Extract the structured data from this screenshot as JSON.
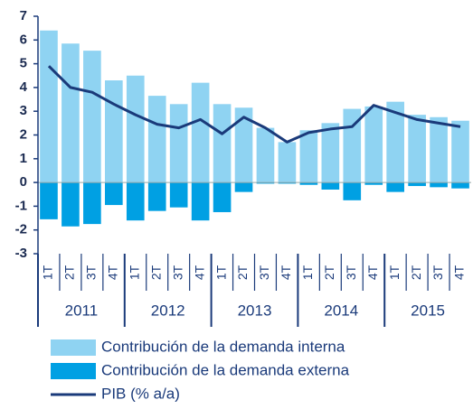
{
  "chart_data": {
    "type": "bar",
    "categories": [
      "1T",
      "2T",
      "3T",
      "4T",
      "1T",
      "2T",
      "3T",
      "4T",
      "1T",
      "2T",
      "3T",
      "4T",
      "1T",
      "2T",
      "3T",
      "4T",
      "1T",
      "2T",
      "3T",
      "4T"
    ],
    "years": [
      "2011",
      "2012",
      "2013",
      "2014",
      "2015"
    ],
    "series": [
      {
        "name": "Contribución de la demanda interna",
        "type": "bar",
        "color": "#8fd3f2",
        "values": [
          6.4,
          5.85,
          5.55,
          4.3,
          4.5,
          3.65,
          3.3,
          4.2,
          3.3,
          3.15,
          2.3,
          1.7,
          2.2,
          2.5,
          3.1,
          3.2,
          3.4,
          2.85,
          2.75,
          2.6
        ]
      },
      {
        "name": "Contribución de la demanda externa",
        "type": "bar",
        "color": "#00a0e3",
        "values": [
          -1.55,
          -1.85,
          -1.75,
          -0.95,
          -1.6,
          -1.2,
          -1.05,
          -1.6,
          -1.25,
          -0.4,
          -0.05,
          -0.05,
          -0.1,
          -0.3,
          -0.75,
          -0.1,
          -0.4,
          -0.15,
          -0.2,
          -0.25
        ]
      },
      {
        "name": "PIB (% a/a)",
        "type": "line",
        "color": "#1a3a7a",
        "values": [
          4.9,
          4.0,
          3.8,
          3.3,
          2.85,
          2.45,
          2.3,
          2.65,
          2.05,
          2.75,
          2.3,
          1.7,
          2.1,
          2.25,
          2.35,
          3.25,
          2.95,
          2.65,
          2.5,
          2.35
        ]
      }
    ],
    "ylim": [
      -3,
      7
    ],
    "yticks": [
      -3,
      -2,
      -1,
      0,
      1,
      2,
      3,
      4,
      5,
      6,
      7
    ],
    "grid": false
  }
}
